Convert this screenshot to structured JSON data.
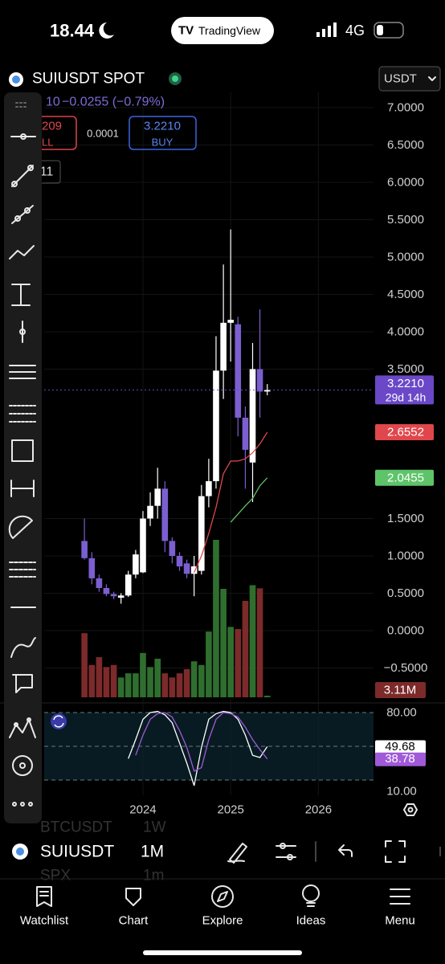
{
  "status": {
    "time": "18.44",
    "app": "TradingView",
    "network": "4G"
  },
  "header": {
    "symbol": "SUIUSDT SPOT",
    "currency": "USDT",
    "change_prefix": "10",
    "change": "−0.0255 (−0.79%)",
    "sell_price": "209",
    "sell_label": "LL",
    "spread": "0.0001",
    "buy_price": "3.2210",
    "buy_label": "BUY",
    "extra": "11"
  },
  "chart_data": {
    "type": "candlestick",
    "x": [
      2023.333,
      2023.417,
      2023.5,
      2023.583,
      2023.667,
      2023.75,
      2023.833,
      2023.917,
      2024,
      2024.083,
      2024.167,
      2024.25,
      2024.333,
      2024.417,
      2024.5,
      2024.583,
      2024.667,
      2024.75,
      2024.833,
      2024.917,
      2025,
      2025.083,
      2025.167,
      2025.25,
      2025.333,
      2025.417
    ],
    "open": [
      1.2,
      0.97,
      0.7,
      0.57,
      0.49,
      0.44,
      0.47,
      0.75,
      0.78,
      1.5,
      1.67,
      1.9,
      1.2,
      1.0,
      0.9,
      0.76,
      0.8,
      1.8,
      2.0,
      3.48,
      4.12,
      4.1,
      2.85,
      2.25,
      3.5,
      3.2
    ],
    "high": [
      1.5,
      1.05,
      0.75,
      0.62,
      0.52,
      0.5,
      0.8,
      1.08,
      1.6,
      1.85,
      2.18,
      2.0,
      1.25,
      1.05,
      0.95,
      1.0,
      1.95,
      2.3,
      3.94,
      4.9,
      5.37,
      4.2,
      3.0,
      3.85,
      4.3,
      3.3
    ],
    "low": [
      0.95,
      0.62,
      0.52,
      0.46,
      0.42,
      0.36,
      0.45,
      0.7,
      0.77,
      1.4,
      1.5,
      1.05,
      0.9,
      0.8,
      0.7,
      0.46,
      0.75,
      1.65,
      1.9,
      3.1,
      3.6,
      2.6,
      1.9,
      1.72,
      2.85,
      3.15
    ],
    "close": [
      0.97,
      0.7,
      0.57,
      0.49,
      0.46,
      0.47,
      0.75,
      1.02,
      1.5,
      1.67,
      1.9,
      1.2,
      1.0,
      0.86,
      0.76,
      0.86,
      1.8,
      2.0,
      3.48,
      4.12,
      4.16,
      2.85,
      2.42,
      3.5,
      3.2,
      3.221
    ],
    "up_color": "#ffffff",
    "down_color": "#7b5fd0",
    "xlim": [
      2022.874,
      2026.628
    ],
    "xticks": [
      2024,
      2025,
      2026
    ],
    "ylim": [
      -0.914,
      7.204
    ],
    "yticks": [
      {
        "value": 7,
        "label": "7.0000"
      },
      {
        "value": 6.5,
        "label": "6.5000"
      },
      {
        "value": 6,
        "label": "6.0000"
      },
      {
        "value": 5.5,
        "label": "5.5000"
      },
      {
        "value": 5,
        "label": "5.0000"
      },
      {
        "value": 4.5,
        "label": "4.5000"
      },
      {
        "value": 4,
        "label": "4.0000"
      },
      {
        "value": 3.5,
        "label": "3.5000"
      },
      {
        "value": 1.5,
        "label": "1.5000"
      },
      {
        "value": 1,
        "label": "1.0000"
      },
      {
        "value": 0.5,
        "label": "0.5000"
      },
      {
        "value": 0,
        "label": "0.0000"
      },
      {
        "value": -0.5,
        "label": "−0.5000"
      }
    ],
    "grid": true,
    "last_price": {
      "value": 3.221,
      "label": "3.2210",
      "countdown": "29d 14h",
      "color": "#6a48c8"
    },
    "volume": {
      "values": [
        123,
        62,
        77,
        58,
        62,
        38,
        46,
        46,
        85,
        58,
        74,
        46,
        38,
        46,
        54,
        69,
        62,
        126,
        302,
        208,
        135,
        131,
        185,
        215,
        209,
        3.11
      ],
      "value_labels": [
        null,
        null,
        null,
        null,
        null,
        null,
        null,
        null,
        null,
        null,
        null,
        null,
        null,
        null,
        null,
        null,
        null,
        null,
        null,
        null,
        null,
        null,
        null,
        null,
        null,
        "3.11M"
      ],
      "up_color": "#2f6e2f",
      "down_color": "#7c2a2a"
    },
    "ma": [
      {
        "color": "#e0474c",
        "values": [
          null,
          null,
          null,
          null,
          null,
          null,
          null,
          null,
          null,
          null,
          null,
          null,
          null,
          null,
          null,
          0.78,
          1.0,
          1.3,
          1.65,
          2.1,
          2.27,
          2.27,
          2.3,
          2.38,
          2.5,
          2.6552
        ],
        "value_labels": [
          null,
          null,
          null,
          null,
          null,
          null,
          null,
          null,
          null,
          null,
          null,
          null,
          null,
          null,
          null,
          null,
          null,
          null,
          null,
          null,
          null,
          null,
          null,
          null,
          null,
          "2.6552"
        ]
      },
      {
        "color": "#5ec46a",
        "values": [
          null,
          null,
          null,
          null,
          null,
          null,
          null,
          null,
          null,
          null,
          null,
          null,
          null,
          null,
          null,
          null,
          null,
          null,
          null,
          null,
          1.45,
          1.56,
          1.67,
          1.77,
          1.94,
          2.0455
        ],
        "value_labels": [
          null,
          null,
          null,
          null,
          null,
          null,
          null,
          null,
          null,
          null,
          null,
          null,
          null,
          null,
          null,
          null,
          null,
          null,
          null,
          null,
          null,
          null,
          null,
          null,
          null,
          "2.0455"
        ]
      }
    ],
    "stoch": {
      "ylim": [
        6.43,
        85
      ],
      "yticks": [
        {
          "value": 80,
          "label": "80.00"
        },
        {
          "value": 10,
          "label": "10.00"
        }
      ],
      "bands": [
        80,
        50,
        20
      ],
      "series": [
        {
          "color": "#ffffff",
          "values": [
            null,
            null,
            null,
            null,
            null,
            null,
            39,
            56,
            74,
            80,
            81,
            78,
            71,
            53,
            35,
            15,
            49,
            74,
            79,
            81,
            80,
            74,
            60,
            42,
            40,
            49.68
          ],
          "value_labels": [
            null,
            null,
            null,
            null,
            null,
            null,
            null,
            null,
            null,
            null,
            null,
            null,
            null,
            null,
            null,
            null,
            null,
            null,
            null,
            null,
            null,
            null,
            null,
            null,
            null,
            "49.68"
          ]
        },
        {
          "color": "#a05ad8",
          "values": [
            null,
            null,
            null,
            null,
            null,
            null,
            null,
            42,
            60,
            74,
            79,
            80,
            76,
            64,
            49,
            28,
            31,
            56,
            74,
            80,
            79,
            76,
            67,
            56,
            47,
            38.78
          ],
          "value_labels": [
            null,
            null,
            null,
            null,
            null,
            null,
            null,
            null,
            null,
            null,
            null,
            null,
            null,
            null,
            null,
            null,
            null,
            null,
            null,
            null,
            null,
            null,
            null,
            null,
            null,
            "38.78"
          ]
        }
      ]
    }
  },
  "toolbar": {
    "symbol": "SUIUSDT",
    "interval": "1M",
    "ghost_symbol": "BTCUSDT",
    "ghost_interval": "1W",
    "ghost_symbol2": "SPX",
    "ghost_interval2": "1m"
  },
  "tabs": [
    "Watchlist",
    "Chart",
    "Explore",
    "Ideas",
    "Menu"
  ]
}
